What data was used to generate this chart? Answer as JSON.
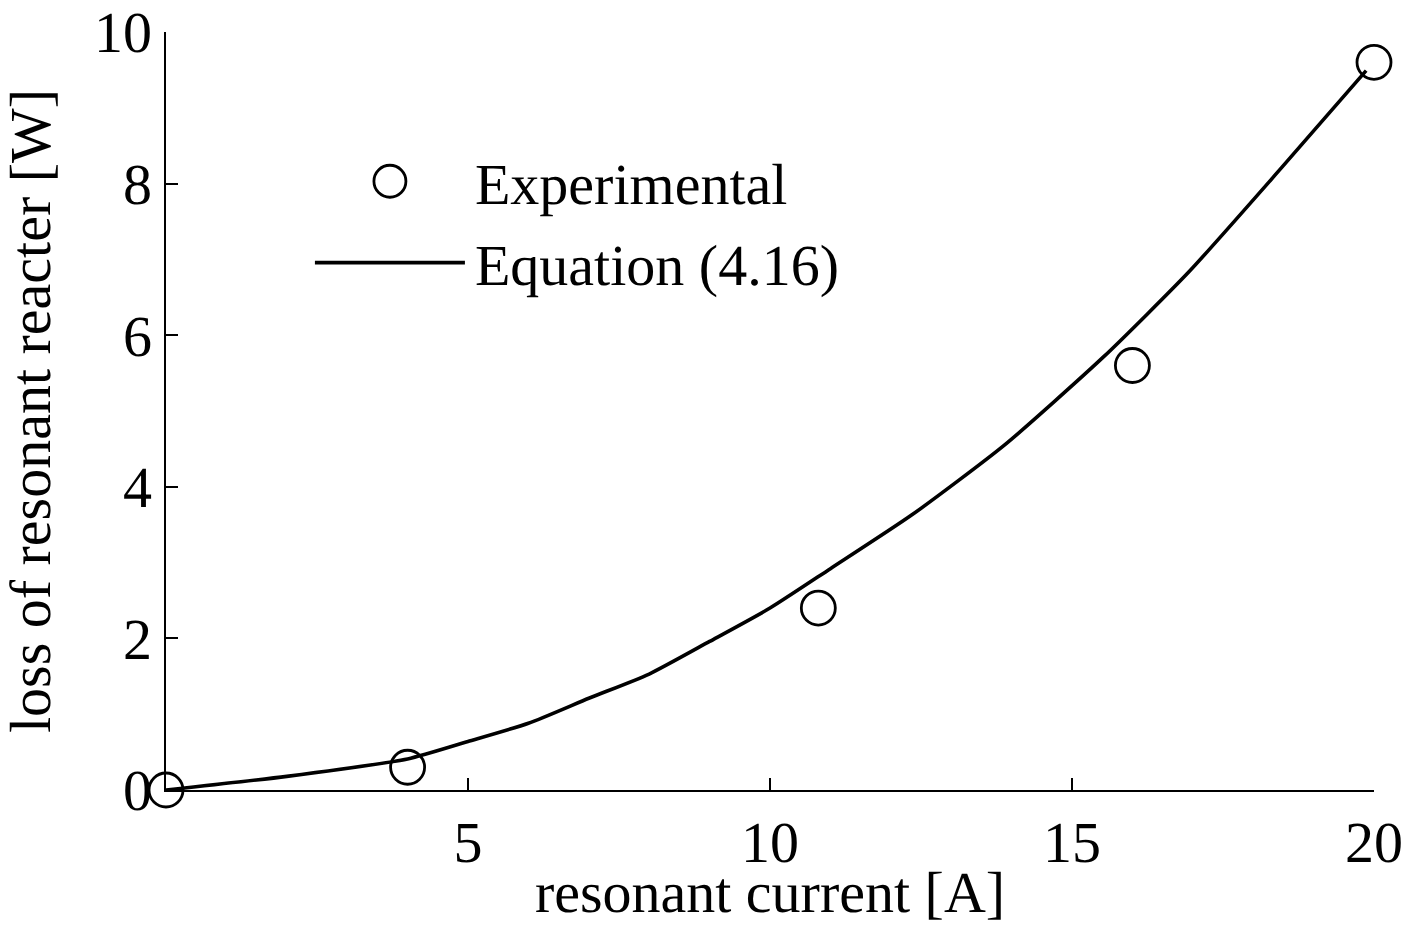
{
  "chart_data": {
    "type": "scatter",
    "xlabel": "resonant current [A]",
    "ylabel": "loss of resonant reacter [W]",
    "xlim": [
      0,
      20
    ],
    "ylim": [
      0,
      10
    ],
    "xticks": [
      {
        "value": 0,
        "label": null
      },
      5,
      10,
      15,
      20
    ],
    "yticks": [
      0,
      2,
      4,
      6,
      8,
      10
    ],
    "grid": false,
    "legend": "top left",
    "series": [
      {
        "name": "Experimental",
        "marker": "circle",
        "color": "#000000",
        "x": [
          0,
          4,
          10.8,
          16,
          20
        ],
        "values": [
          0,
          0.3,
          2.4,
          5.6,
          9.6
        ]
      },
      {
        "name": "Equation (4.16)",
        "type": "line",
        "marker": "none",
        "line_style": "solid",
        "color": "#000000",
        "x": [
          0,
          2,
          4,
          5,
          6,
          7,
          8,
          9,
          10,
          11,
          12.35,
          13.88,
          15.53,
          16.94,
          18.47,
          19.87
        ],
        "values": [
          0,
          0.18,
          0.41,
          0.64,
          0.88,
          1.21,
          1.53,
          1.96,
          2.4,
          2.92,
          3.63,
          4.55,
          5.72,
          6.84,
          8.21,
          9.49
        ]
      }
    ]
  }
}
